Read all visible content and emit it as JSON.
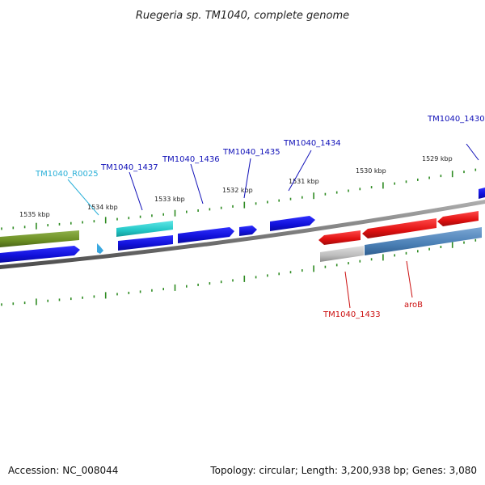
{
  "title": "Ruegeria sp. TM1040, complete genome",
  "footer": {
    "accession": "Accession: NC_008044",
    "topology": "Topology: circular; Length: 3,200,938 bp; Genes: 3,080"
  },
  "colors": {
    "backbone": "#7a7a7a",
    "tick": "#2e8b22",
    "gene_blue": "#1010d8",
    "gene_cyan": "#22c6c6",
    "gene_olive": "#6b8e23",
    "gene_red": "#e01010",
    "gene_steel": "#4a7fb5",
    "gene_gray": "#bdbdbd",
    "rna_light_blue": "#3aa8e0",
    "label_blue": "#1010b8",
    "label_cyan": "#2ab0d8",
    "label_red": "#cc1010"
  },
  "ticks": [
    {
      "label": "1535 kbp"
    },
    {
      "label": "1534 kbp"
    },
    {
      "label": "1533 kbp"
    },
    {
      "label": "1532 kbp"
    },
    {
      "label": "1531 kbp"
    },
    {
      "label": "1530 kbp"
    },
    {
      "label": "1529 kbp"
    }
  ],
  "features": [
    {
      "name": "TM1040_1430",
      "color": "label_blue"
    },
    {
      "name": "TM1040_1434",
      "color": "label_blue"
    },
    {
      "name": "TM1040_1435",
      "color": "label_blue"
    },
    {
      "name": "TM1040_1436",
      "color": "label_blue"
    },
    {
      "name": "TM1040_1437",
      "color": "label_blue"
    },
    {
      "name": "TM1040_R0025",
      "color": "label_cyan"
    },
    {
      "name": "TM1040_1433",
      "color": "label_red"
    },
    {
      "name": "aroB",
      "color": "label_red"
    }
  ]
}
